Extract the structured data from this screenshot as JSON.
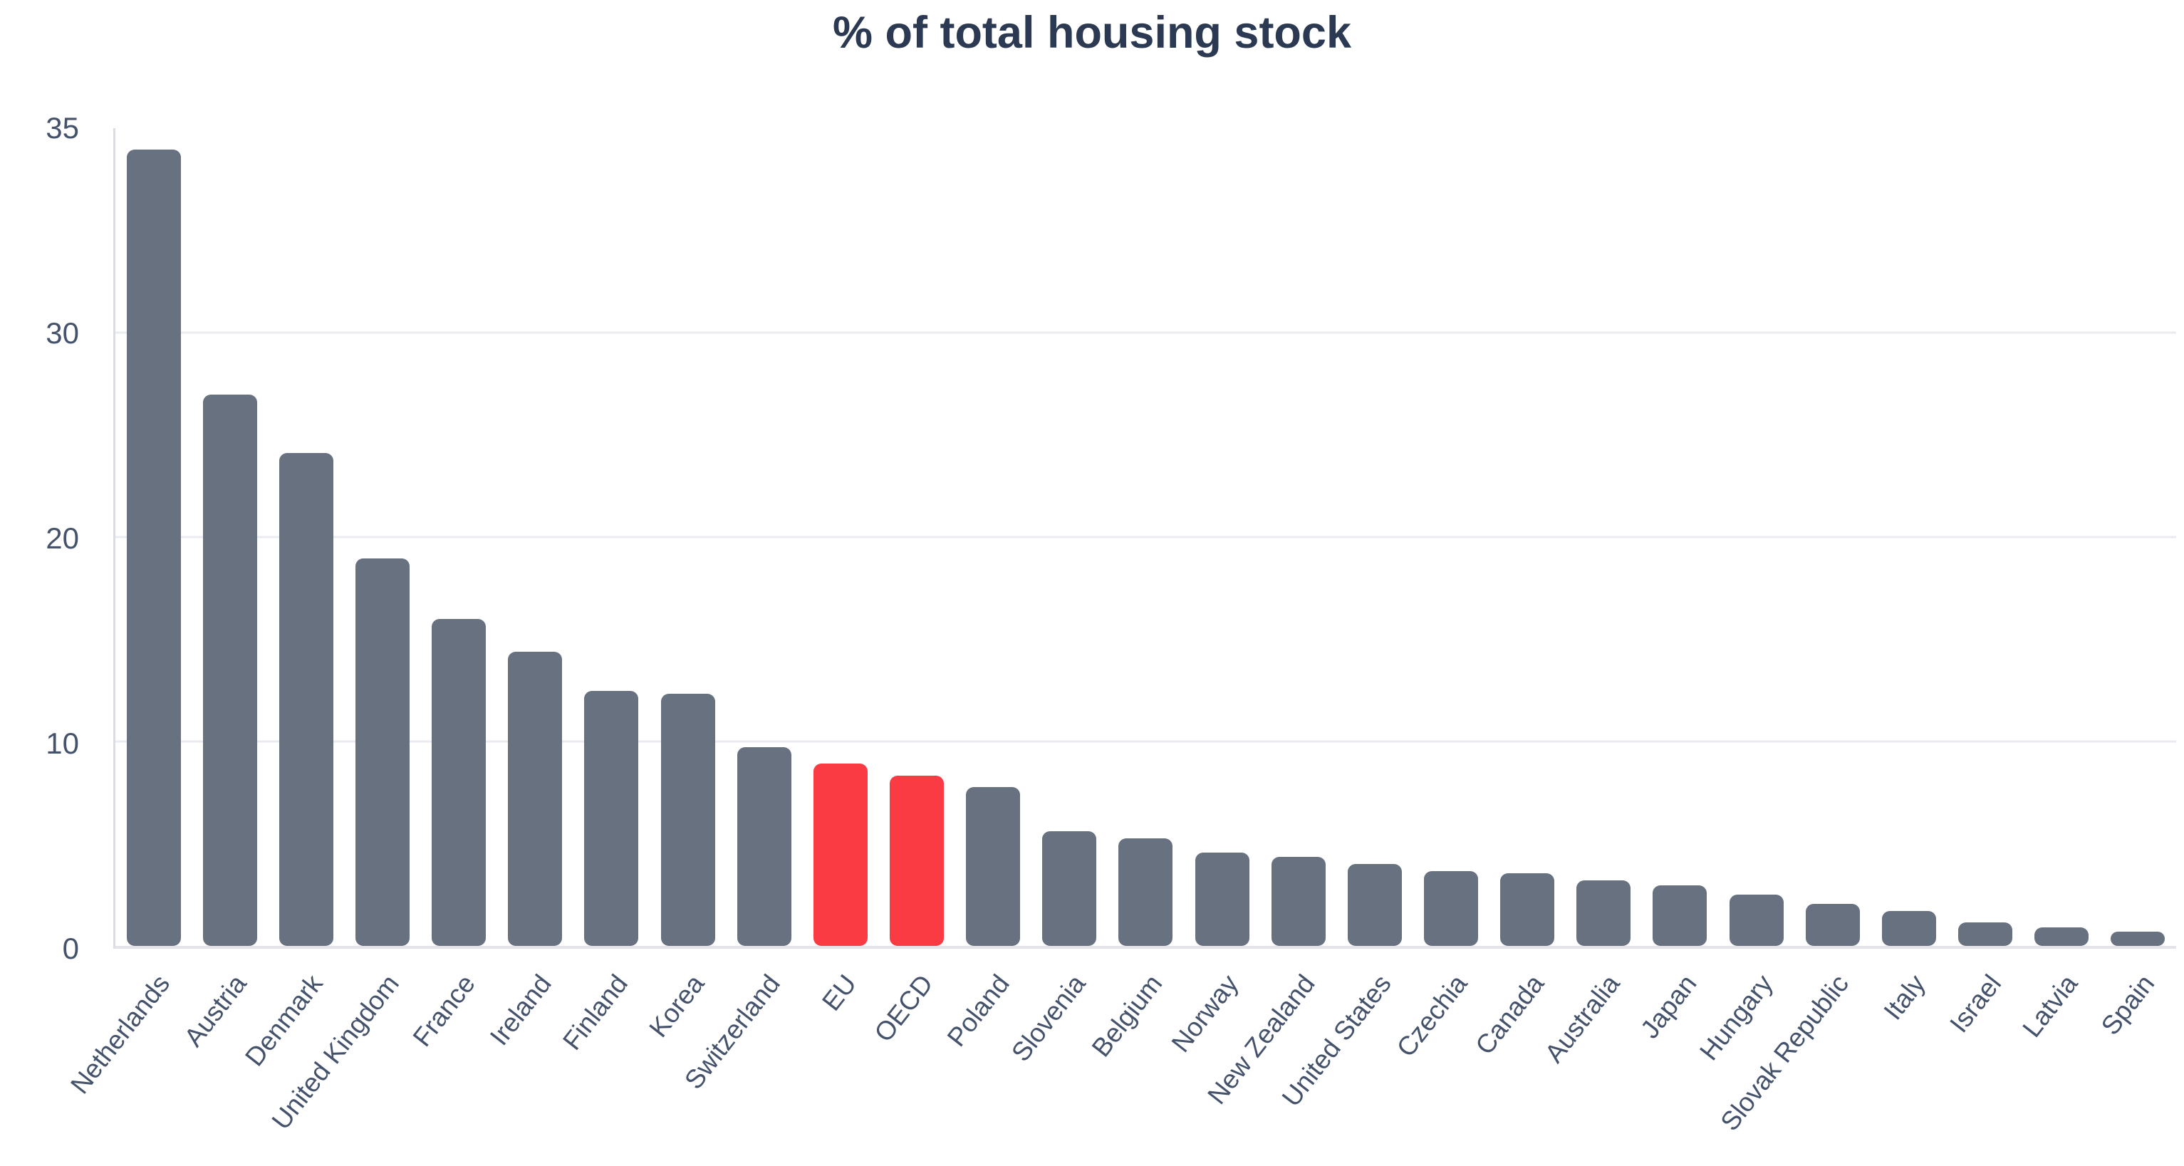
{
  "title": "% of total housing stock",
  "chart_data": {
    "type": "bar",
    "title": "% of total housing stock",
    "xlabel": "",
    "ylabel": "",
    "ylim": [
      0,
      35
    ],
    "y_tick_labels": [
      "35",
      "30",
      "20",
      "10",
      "0"
    ],
    "grid": "horizontal gridlines at labeled ticks, evenly spaced; no vertical grid",
    "legend": "none",
    "bar_color": "#68717f",
    "highlight_color": "#fb3b43",
    "highlighted_categories": [
      "EU",
      "OECD"
    ],
    "categories": [
      "Netherlands",
      "Austria",
      "Denmark",
      "United Kingdom",
      "France",
      "Ireland",
      "Finland",
      "Korea",
      "Switzerland",
      "EU",
      "OECD",
      "Poland",
      "Slovenia",
      "Belgium",
      "Norway",
      "New Zealand",
      "United States",
      "Czechia",
      "Canada",
      "Australia",
      "Japan",
      "Hungary",
      "Slovak Republic",
      "Italy",
      "Israel",
      "Latvia",
      "Spain"
    ],
    "values": [
      34.1,
      23.6,
      21.1,
      16.6,
      14.0,
      12.6,
      10.9,
      10.8,
      8.5,
      7.8,
      7.3,
      6.8,
      4.9,
      4.6,
      4.0,
      3.8,
      3.5,
      3.2,
      3.1,
      2.8,
      2.6,
      2.2,
      1.8,
      1.5,
      1.0,
      0.8,
      0.6
    ]
  },
  "colors": {
    "title_text": "#2b3a52",
    "axis_text": "#44536b",
    "gridline": "#e9ebef",
    "axis_line": "#d9dce2",
    "baseline": "#e2e4e8",
    "bar": "#68717f",
    "bar_highlight": "#fb3b43",
    "background": "#ffffff"
  }
}
